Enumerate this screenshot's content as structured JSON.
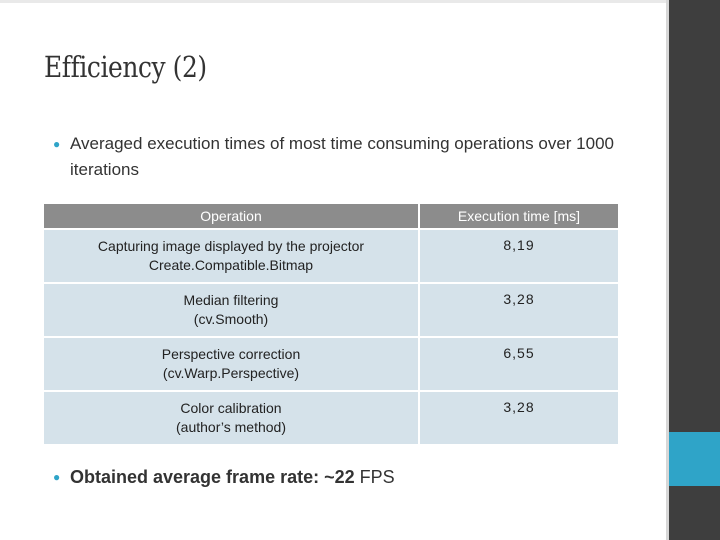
{
  "slide": {
    "title": "Efficiency (2)",
    "bullets": [
      {
        "text": "Averaged execution times of most time consuming operations over 1000 iterations"
      },
      {
        "strong": "Obtained average frame rate: ~22",
        "rest": " FPS"
      }
    ],
    "table": {
      "headers": [
        "Operation",
        "Execution time [ms]"
      ],
      "rows": [
        {
          "operation_line1": "Capturing image displayed by the projector",
          "operation_line2": "Create.Compatible.Bitmap",
          "time": "8,19"
        },
        {
          "operation_line1": "Median filtering",
          "operation_line2": "(cv.Smooth)",
          "time": "3,28"
        },
        {
          "operation_line1": "Perspective correction",
          "operation_line2": "(cv.Warp.Perspective)",
          "time": "6,55"
        },
        {
          "operation_line1": "Color calibration",
          "operation_line2": "(author’s method)",
          "time": "3,28"
        }
      ]
    }
  },
  "colors": {
    "accent": "#2fa4c8",
    "side_panel": "#3e3e3e",
    "header_fill": "#8c8c8c",
    "cell_fill": "#d5e2ea"
  }
}
